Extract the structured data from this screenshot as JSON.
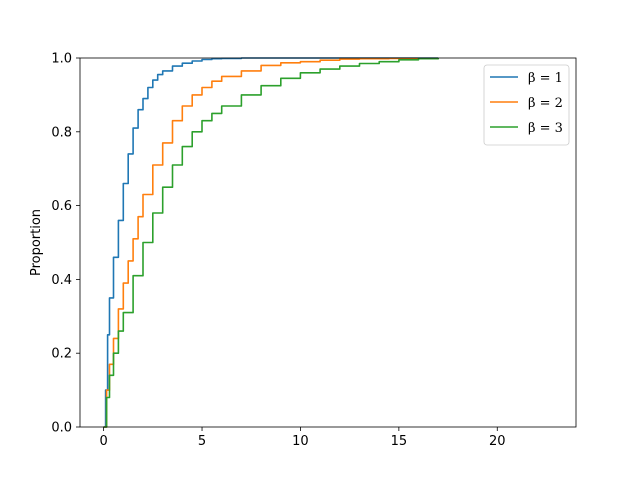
{
  "chart_data": {
    "type": "line",
    "title": "",
    "xlabel": "",
    "ylabel": "Proportion",
    "xlim": [
      -1.2,
      24
    ],
    "ylim": [
      0,
      1
    ],
    "xticks": [
      0,
      5,
      10,
      15,
      20
    ],
    "yticks": [
      0.0,
      0.2,
      0.4,
      0.6,
      0.8,
      1.0
    ],
    "xtick_labels": [
      "0",
      "5",
      "10",
      "15",
      "20"
    ],
    "ytick_labels": [
      "0.0",
      "0.2",
      "0.4",
      "0.6",
      "0.8",
      "1.0"
    ],
    "grid": false,
    "legend_position": "top-right",
    "series": [
      {
        "name": "β = 1",
        "color": "#1f77b4",
        "x": [
          0,
          0.1,
          0.2,
          0.3,
          0.5,
          0.75,
          1.0,
          1.25,
          1.5,
          1.75,
          2.0,
          2.25,
          2.5,
          2.75,
          3.0,
          3.5,
          4.0,
          4.5,
          5.0,
          5.5,
          6.0,
          7.0,
          8.5,
          10.5,
          12.5,
          17.0
        ],
        "y": [
          0,
          0.1,
          0.25,
          0.35,
          0.46,
          0.56,
          0.66,
          0.74,
          0.81,
          0.86,
          0.89,
          0.92,
          0.94,
          0.955,
          0.965,
          0.978,
          0.986,
          0.992,
          0.996,
          0.998,
          0.999,
          1.0,
          1.0,
          1.0,
          1.0,
          1.0
        ]
      },
      {
        "name": "β = 2",
        "color": "#ff7f0e",
        "x": [
          0,
          0.15,
          0.3,
          0.5,
          0.75,
          1.0,
          1.25,
          1.5,
          1.75,
          2.0,
          2.5,
          3.0,
          3.5,
          4.0,
          4.5,
          5.0,
          5.5,
          6.0,
          7.0,
          8.0,
          9.0,
          10.0,
          11.0,
          12.0,
          13.0,
          14.5,
          17.0
        ],
        "y": [
          0,
          0.1,
          0.17,
          0.24,
          0.32,
          0.39,
          0.45,
          0.51,
          0.57,
          0.63,
          0.71,
          0.77,
          0.83,
          0.87,
          0.9,
          0.92,
          0.937,
          0.95,
          0.965,
          0.98,
          0.987,
          0.99,
          0.994,
          0.997,
          0.998,
          0.999,
          1.0
        ]
      },
      {
        "name": "β = 3",
        "color": "#2ca02c",
        "x": [
          0,
          0.15,
          0.3,
          0.5,
          0.75,
          1.0,
          1.5,
          2.0,
          2.5,
          3.0,
          3.5,
          4.0,
          4.5,
          5.0,
          5.5,
          6.0,
          7.0,
          8.0,
          9.0,
          10.0,
          11.0,
          12.0,
          13.0,
          14.0,
          15.0,
          16.0,
          17.0
        ],
        "y": [
          0,
          0.08,
          0.14,
          0.2,
          0.26,
          0.31,
          0.41,
          0.5,
          0.58,
          0.65,
          0.71,
          0.76,
          0.8,
          0.83,
          0.85,
          0.87,
          0.9,
          0.925,
          0.945,
          0.96,
          0.97,
          0.978,
          0.985,
          0.99,
          0.995,
          0.998,
          1.0
        ]
      }
    ]
  }
}
